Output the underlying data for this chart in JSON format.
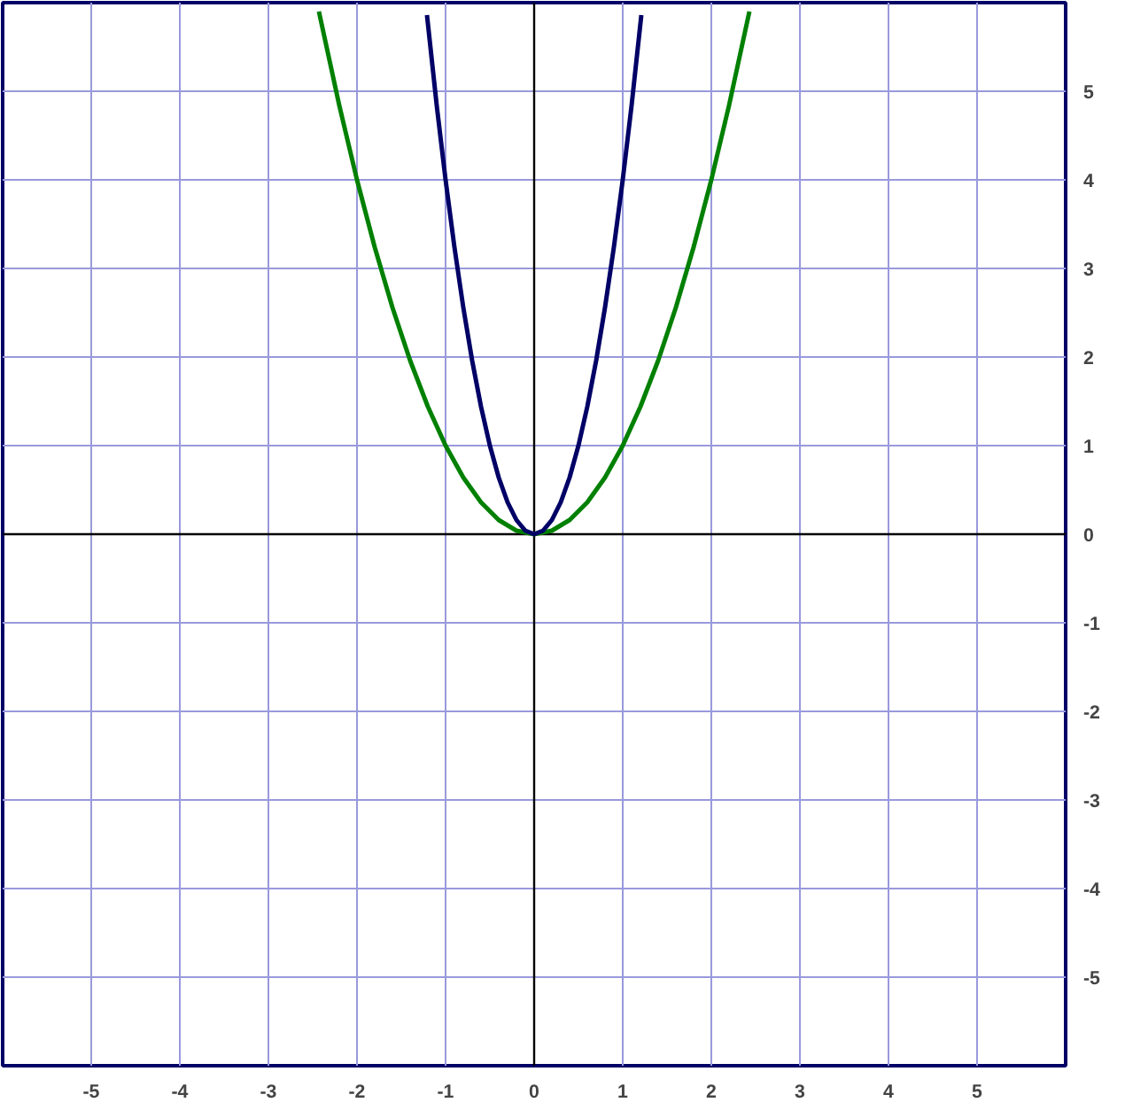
{
  "chart_data": {
    "type": "line",
    "series": [
      {
        "color": "#008000",
        "x": [
          -2.43,
          -2.2,
          -2,
          -1.8,
          -1.6,
          -1.4,
          -1.2,
          -1,
          -0.8,
          -0.6,
          -0.4,
          -0.2,
          0,
          0.2,
          0.4,
          0.6,
          0.8,
          1,
          1.2,
          1.4,
          1.6,
          1.8,
          2,
          2.2,
          2.43
        ],
        "values": [
          5.9,
          4.84,
          4,
          3.24,
          2.56,
          1.96,
          1.44,
          1,
          0.64,
          0.36,
          0.16,
          0.04,
          0,
          0.04,
          0.16,
          0.36,
          0.64,
          1,
          1.44,
          1.96,
          2.56,
          3.24,
          4,
          4.84,
          5.9
        ]
      },
      {
        "color": "#000066",
        "x": [
          -1.21,
          -1.1,
          -1,
          -0.9,
          -0.8,
          -0.7,
          -0.6,
          -0.5,
          -0.4,
          -0.3,
          -0.2,
          -0.1,
          0,
          0.1,
          0.2,
          0.3,
          0.4,
          0.5,
          0.6,
          0.7,
          0.8,
          0.9,
          1,
          1.1,
          1.21
        ],
        "values": [
          5.86,
          4.84,
          4,
          3.24,
          2.56,
          1.96,
          1.44,
          1,
          0.64,
          0.36,
          0.16,
          0.04,
          0,
          0.04,
          0.16,
          0.36,
          0.64,
          1,
          1.44,
          1.96,
          2.56,
          3.24,
          4,
          4.84,
          5.86
        ]
      }
    ],
    "xlim": [
      -6,
      6
    ],
    "ylim": [
      -6,
      6
    ],
    "xticks": [
      -5,
      -4,
      -3,
      -2,
      -1,
      0,
      1,
      2,
      3,
      4,
      5
    ],
    "yticks": [
      -5,
      -4,
      -3,
      -2,
      -1,
      0,
      1,
      2,
      3,
      4,
      5
    ],
    "grid": true,
    "marker": "none",
    "line_style": "solid"
  }
}
